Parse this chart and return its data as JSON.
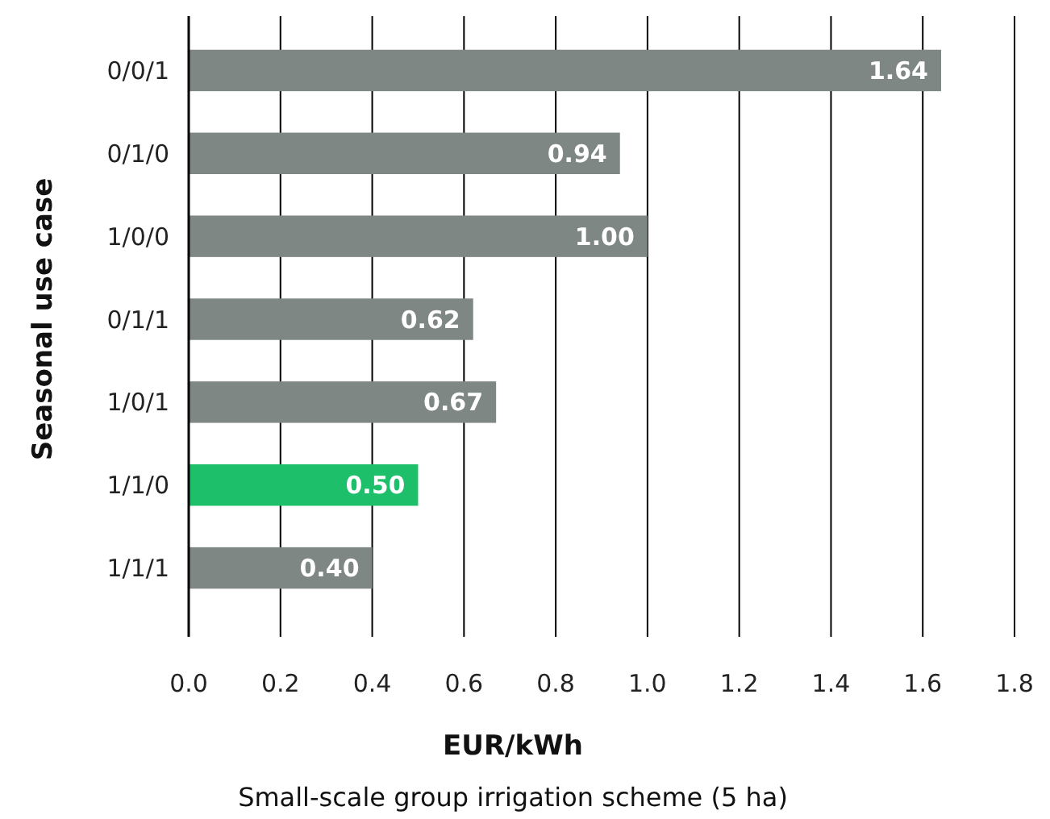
{
  "chart_data": {
    "type": "bar",
    "orientation": "horizontal",
    "xlabel": "EUR/kWh",
    "ylabel": "Seasonal use case",
    "annotations": [
      "Small-scale group irrigation scheme (5 ha)"
    ],
    "categories": [
      "0/0/1",
      "0/1/0",
      "1/0/0",
      "0/1/1",
      "1/0/1",
      "1/1/0",
      "1/1/1"
    ],
    "values": [
      1.64,
      0.94,
      1.0,
      0.62,
      0.67,
      0.5,
      0.4
    ],
    "colors": [
      "#7f8784",
      "#7f8784",
      "#7f8784",
      "#7f8784",
      "#7f8784",
      "#1dbf6a",
      "#7f8784"
    ],
    "data_labels": true,
    "value_labels": [
      "1.64",
      "0.94",
      "1.00",
      "0.62",
      "0.67",
      "0.50",
      "0.40"
    ],
    "xlim": [
      0,
      1.8
    ],
    "xticks": [
      {
        "value": 0,
        "label": "0.0"
      },
      {
        "value": 0.2,
        "label": "0.2"
      },
      {
        "value": 0.4,
        "label": "0.4"
      },
      {
        "value": 0.6,
        "label": "0.6"
      },
      {
        "value": 0.8,
        "label": "0.8"
      },
      {
        "value": 1,
        "label": "1.0"
      },
      {
        "value": 1.2,
        "label": "1.2"
      },
      {
        "value": 1.4,
        "label": "1.4"
      },
      {
        "value": 1.6,
        "label": "1.6"
      },
      {
        "value": 1.8,
        "label": "1.8"
      }
    ],
    "grid": "x"
  }
}
